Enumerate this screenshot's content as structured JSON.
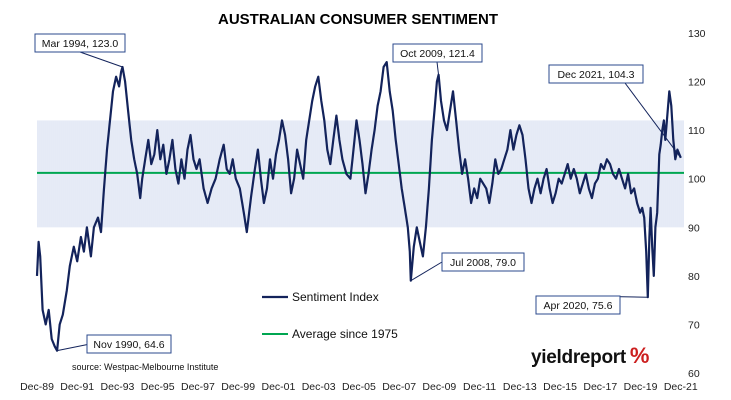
{
  "chart_data": {
    "type": "line",
    "title": "AUSTRALIAN CONSUMER SENTIMENT",
    "xlabel": "",
    "ylabel": "",
    "ylim": [
      60,
      130
    ],
    "yticks": [
      60,
      70,
      80,
      90,
      100,
      110,
      120,
      130
    ],
    "y_axis_side": "right",
    "xlim": [
      1989.92,
      2022.08
    ],
    "xticks": [
      {
        "x": 1989.92,
        "label": "Dec-89"
      },
      {
        "x": 1991.92,
        "label": "Dec-91"
      },
      {
        "x": 1993.92,
        "label": "Dec-93"
      },
      {
        "x": 1995.92,
        "label": "Dec-95"
      },
      {
        "x": 1997.92,
        "label": "Dec-97"
      },
      {
        "x": 1999.92,
        "label": "Dec-99"
      },
      {
        "x": 2001.92,
        "label": "Dec-01"
      },
      {
        "x": 2003.92,
        "label": "Dec-03"
      },
      {
        "x": 2005.92,
        "label": "Dec-05"
      },
      {
        "x": 2007.92,
        "label": "Dec-07"
      },
      {
        "x": 2009.92,
        "label": "Dec-09"
      },
      {
        "x": 2011.92,
        "label": "Dec-11"
      },
      {
        "x": 2013.92,
        "label": "Dec-13"
      },
      {
        "x": 2015.92,
        "label": "Dec-15"
      },
      {
        "x": 2017.92,
        "label": "Dec-17"
      },
      {
        "x": 2019.92,
        "label": "Dec-19"
      },
      {
        "x": 2021.92,
        "label": "Dec-21"
      }
    ],
    "band": {
      "low": 90,
      "high": 112
    },
    "average": 101.2,
    "legend": {
      "placement": "center",
      "entries": [
        "Sentiment Index",
        "Average since 1975"
      ]
    },
    "colors": {
      "series": "#13235b",
      "average": "#00a651",
      "band": "#c9d3ec",
      "callout_border": "#2b4a8c"
    },
    "series": [
      {
        "name": "Sentiment Index",
        "points": [
          [
            1989.92,
            80
          ],
          [
            1990.0,
            87
          ],
          [
            1990.08,
            84
          ],
          [
            1990.2,
            73
          ],
          [
            1990.35,
            70
          ],
          [
            1990.5,
            73
          ],
          [
            1990.65,
            67
          ],
          [
            1990.8,
            65.5
          ],
          [
            1990.92,
            64.6
          ],
          [
            1991.05,
            70
          ],
          [
            1991.2,
            72
          ],
          [
            1991.4,
            77
          ],
          [
            1991.55,
            82
          ],
          [
            1991.75,
            86
          ],
          [
            1991.92,
            83
          ],
          [
            1992.1,
            88
          ],
          [
            1992.25,
            85
          ],
          [
            1992.4,
            90
          ],
          [
            1992.6,
            84
          ],
          [
            1992.75,
            90
          ],
          [
            1992.95,
            92
          ],
          [
            1993.1,
            89
          ],
          [
            1993.25,
            98
          ],
          [
            1993.4,
            106
          ],
          [
            1993.55,
            112
          ],
          [
            1993.7,
            118
          ],
          [
            1993.85,
            121
          ],
          [
            1994.0,
            119
          ],
          [
            1994.1,
            122
          ],
          [
            1994.17,
            123.0
          ],
          [
            1994.3,
            120
          ],
          [
            1994.45,
            114
          ],
          [
            1994.6,
            108
          ],
          [
            1994.75,
            104
          ],
          [
            1994.9,
            101
          ],
          [
            1995.05,
            96
          ],
          [
            1995.15,
            100
          ],
          [
            1995.3,
            104
          ],
          [
            1995.45,
            108
          ],
          [
            1995.6,
            103
          ],
          [
            1995.75,
            105
          ],
          [
            1995.9,
            110
          ],
          [
            1996.05,
            104
          ],
          [
            1996.2,
            107
          ],
          [
            1996.35,
            101
          ],
          [
            1996.5,
            104
          ],
          [
            1996.65,
            108
          ],
          [
            1996.8,
            102
          ],
          [
            1996.95,
            99
          ],
          [
            1997.1,
            104
          ],
          [
            1997.25,
            100
          ],
          [
            1997.4,
            106
          ],
          [
            1997.55,
            109
          ],
          [
            1997.7,
            104
          ],
          [
            1997.85,
            102
          ],
          [
            1998.0,
            104
          ],
          [
            1998.2,
            98
          ],
          [
            1998.4,
            95
          ],
          [
            1998.6,
            98
          ],
          [
            1998.8,
            100
          ],
          [
            1999.0,
            104
          ],
          [
            1999.2,
            107
          ],
          [
            1999.35,
            102
          ],
          [
            1999.5,
            101
          ],
          [
            1999.65,
            104
          ],
          [
            1999.8,
            100
          ],
          [
            2000.0,
            98
          ],
          [
            2000.2,
            93
          ],
          [
            2000.35,
            89
          ],
          [
            2000.55,
            96
          ],
          [
            2000.75,
            102
          ],
          [
            2000.9,
            106
          ],
          [
            2001.05,
            100
          ],
          [
            2001.2,
            95
          ],
          [
            2001.35,
            98
          ],
          [
            2001.5,
            104
          ],
          [
            2001.65,
            100
          ],
          [
            2001.8,
            105
          ],
          [
            2001.95,
            108
          ],
          [
            2002.1,
            112
          ],
          [
            2002.25,
            109
          ],
          [
            2002.4,
            104
          ],
          [
            2002.55,
            97
          ],
          [
            2002.7,
            100
          ],
          [
            2002.85,
            106
          ],
          [
            2003.0,
            103
          ],
          [
            2003.15,
            100
          ],
          [
            2003.3,
            108
          ],
          [
            2003.45,
            112
          ],
          [
            2003.6,
            116
          ],
          [
            2003.75,
            119
          ],
          [
            2003.9,
            121
          ],
          [
            2004.05,
            116
          ],
          [
            2004.2,
            112
          ],
          [
            2004.35,
            106
          ],
          [
            2004.5,
            103
          ],
          [
            2004.65,
            108
          ],
          [
            2004.8,
            113
          ],
          [
            2004.95,
            108
          ],
          [
            2005.1,
            104
          ],
          [
            2005.3,
            101
          ],
          [
            2005.5,
            100
          ],
          [
            2005.65,
            106
          ],
          [
            2005.8,
            112
          ],
          [
            2005.95,
            108
          ],
          [
            2006.1,
            103
          ],
          [
            2006.25,
            97
          ],
          [
            2006.4,
            101
          ],
          [
            2006.55,
            106
          ],
          [
            2006.7,
            110
          ],
          [
            2006.85,
            115
          ],
          [
            2007.0,
            118
          ],
          [
            2007.15,
            123
          ],
          [
            2007.3,
            124
          ],
          [
            2007.45,
            118
          ],
          [
            2007.6,
            114
          ],
          [
            2007.75,
            108
          ],
          [
            2007.9,
            103
          ],
          [
            2008.05,
            98
          ],
          [
            2008.2,
            94
          ],
          [
            2008.35,
            90
          ],
          [
            2008.45,
            85
          ],
          [
            2008.5,
            79.0
          ],
          [
            2008.65,
            86
          ],
          [
            2008.8,
            90
          ],
          [
            2008.95,
            87
          ],
          [
            2009.1,
            84
          ],
          [
            2009.25,
            90
          ],
          [
            2009.4,
            98
          ],
          [
            2009.55,
            108
          ],
          [
            2009.7,
            115
          ],
          [
            2009.8,
            120
          ],
          [
            2009.88,
            121.4
          ],
          [
            2010.0,
            116
          ],
          [
            2010.15,
            112
          ],
          [
            2010.3,
            110
          ],
          [
            2010.45,
            114
          ],
          [
            2010.6,
            118
          ],
          [
            2010.75,
            112
          ],
          [
            2010.9,
            106
          ],
          [
            2011.05,
            101
          ],
          [
            2011.2,
            104
          ],
          [
            2011.35,
            100
          ],
          [
            2011.5,
            95
          ],
          [
            2011.65,
            98
          ],
          [
            2011.8,
            96
          ],
          [
            2011.95,
            100
          ],
          [
            2012.1,
            99
          ],
          [
            2012.25,
            98
          ],
          [
            2012.4,
            95
          ],
          [
            2012.55,
            99
          ],
          [
            2012.7,
            104
          ],
          [
            2012.85,
            101
          ],
          [
            2013.0,
            102
          ],
          [
            2013.15,
            104
          ],
          [
            2013.3,
            106
          ],
          [
            2013.45,
            110
          ],
          [
            2013.6,
            106
          ],
          [
            2013.75,
            109
          ],
          [
            2013.9,
            111
          ],
          [
            2014.05,
            109
          ],
          [
            2014.2,
            104
          ],
          [
            2014.35,
            98
          ],
          [
            2014.5,
            95
          ],
          [
            2014.65,
            98
          ],
          [
            2014.8,
            100
          ],
          [
            2014.95,
            97
          ],
          [
            2015.1,
            100
          ],
          [
            2015.25,
            102
          ],
          [
            2015.4,
            98
          ],
          [
            2015.55,
            95
          ],
          [
            2015.7,
            97
          ],
          [
            2015.85,
            100
          ],
          [
            2016.0,
            99
          ],
          [
            2016.15,
            101
          ],
          [
            2016.3,
            103
          ],
          [
            2016.45,
            100
          ],
          [
            2016.6,
            102
          ],
          [
            2016.75,
            100
          ],
          [
            2016.9,
            97
          ],
          [
            2017.05,
            99
          ],
          [
            2017.2,
            101
          ],
          [
            2017.35,
            98
          ],
          [
            2017.5,
            96
          ],
          [
            2017.65,
            99
          ],
          [
            2017.8,
            100
          ],
          [
            2017.95,
            103
          ],
          [
            2018.1,
            102
          ],
          [
            2018.25,
            104
          ],
          [
            2018.4,
            103
          ],
          [
            2018.55,
            101
          ],
          [
            2018.7,
            100
          ],
          [
            2018.85,
            102
          ],
          [
            2019.0,
            100
          ],
          [
            2019.15,
            98
          ],
          [
            2019.3,
            101
          ],
          [
            2019.45,
            97
          ],
          [
            2019.6,
            98
          ],
          [
            2019.75,
            95
          ],
          [
            2019.9,
            93
          ],
          [
            2020.0,
            94
          ],
          [
            2020.1,
            92
          ],
          [
            2020.2,
            85
          ],
          [
            2020.28,
            75.6
          ],
          [
            2020.36,
            88
          ],
          [
            2020.42,
            94
          ],
          [
            2020.5,
            86
          ],
          [
            2020.58,
            80
          ],
          [
            2020.66,
            90
          ],
          [
            2020.75,
            93
          ],
          [
            2020.85,
            105
          ],
          [
            2020.92,
            107
          ],
          [
            2021.0,
            110
          ],
          [
            2021.08,
            112
          ],
          [
            2021.15,
            108
          ],
          [
            2021.25,
            113
          ],
          [
            2021.35,
            118
          ],
          [
            2021.45,
            115
          ],
          [
            2021.55,
            108
          ],
          [
            2021.65,
            104
          ],
          [
            2021.75,
            106
          ],
          [
            2021.85,
            105
          ],
          [
            2021.92,
            104.3
          ]
        ]
      },
      {
        "name": "Average since 1975",
        "values": [
          101.2
        ]
      }
    ],
    "annotations": [
      {
        "label": "Mar 1994, 123.0",
        "x": 1994.17,
        "y": 123.0
      },
      {
        "label": "Nov 1990, 64.6",
        "x": 1990.92,
        "y": 64.6
      },
      {
        "label": "Oct 2009, 121.4",
        "x": 2009.88,
        "y": 121.4
      },
      {
        "label": "Jul 2008, 79.0",
        "x": 2008.5,
        "y": 79.0
      },
      {
        "label": "Dec 2021, 104.3",
        "x": 2021.92,
        "y": 104.3
      },
      {
        "label": "Apr 2020, 75.6",
        "x": 2020.28,
        "y": 75.6
      }
    ]
  },
  "source": "source: Westpac-Melbourne Institute",
  "logo": {
    "word_a": "yield",
    "word_b": "report",
    "symbol": "%"
  }
}
